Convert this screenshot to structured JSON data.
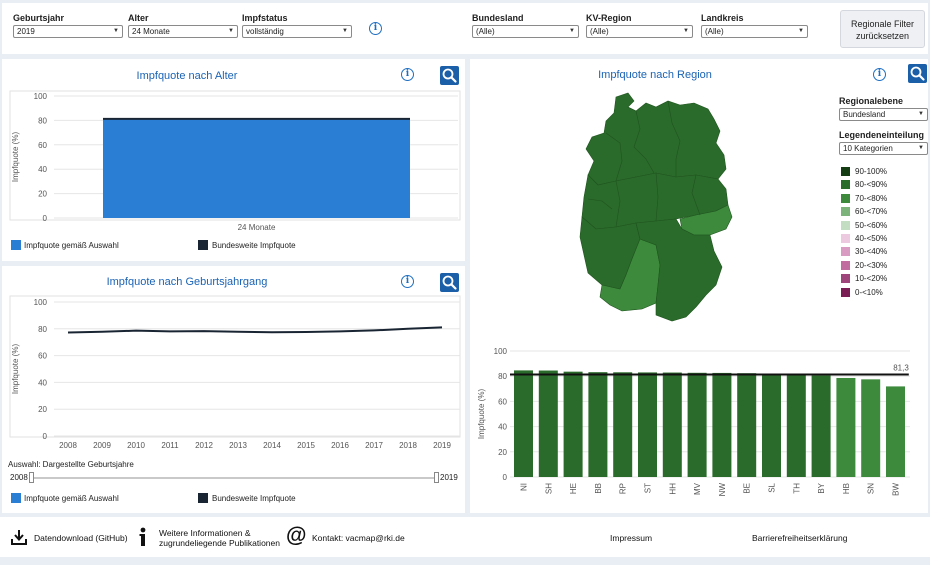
{
  "filters": {
    "geburtsjahr": {
      "label": "Geburtsjahr",
      "value": "2019"
    },
    "alter": {
      "label": "Alter",
      "value": "24 Monate"
    },
    "impfstatus": {
      "label": "Impfstatus",
      "value": "vollständig"
    },
    "bundesland": {
      "label": "Bundesland",
      "value": "(Alle)"
    },
    "kv_region": {
      "label": "KV-Region",
      "value": "(Alle)"
    },
    "landkreis": {
      "label": "Landkreis",
      "value": "(Alle)"
    },
    "reset_line1": "Regionale Filter",
    "reset_line2": "zurücksetzen"
  },
  "panel_alter": {
    "title": "Impfquote nach Alter",
    "ylabel": "Impfquote (%)",
    "legend_selected": "Impfquote gemäß Auswahl",
    "legend_national": "Bundesweite Impfquote"
  },
  "panel_jahrgang": {
    "title": "Impfquote nach Geburtsjahrgang",
    "ylabel": "Impfquote (%)",
    "slider_label": "Auswahl: Dargestellte Geburtsjahre",
    "slider_min": "2008",
    "slider_max": "2019",
    "legend_selected": "Impfquote gemäß Auswahl",
    "legend_national": "Bundesweite Impfquote"
  },
  "panel_region": {
    "title": "Impfquote nach Region",
    "regionalebene_label": "Regionalebene",
    "regionalebene_value": "Bundesland",
    "legendeneinteilung_label": "Legendeneinteilung",
    "legendeneinteilung_value": "10 Kategorien",
    "legend": [
      {
        "label": "90-100%",
        "color": "#143d14"
      },
      {
        "label": "80-<90%",
        "color": "#2a6a2a"
      },
      {
        "label": "70-<80%",
        "color": "#3d8a3d"
      },
      {
        "label": "60-<70%",
        "color": "#7bb37b"
      },
      {
        "label": "50-<60%",
        "color": "#c3ddc3"
      },
      {
        "label": "40-<50%",
        "color": "#ecc9df"
      },
      {
        "label": "30-<40%",
        "color": "#d99bc1"
      },
      {
        "label": "20-<30%",
        "color": "#c26d9f"
      },
      {
        "label": "10-<20%",
        "color": "#a0447c"
      },
      {
        "label": "0-<10%",
        "color": "#7a1d55"
      }
    ]
  },
  "chart_data": [
    {
      "type": "bar",
      "title": "Impfquote nach Alter",
      "ylabel": "Impfquote (%)",
      "categories": [
        "24 Monate"
      ],
      "values": [
        81
      ],
      "reference_value": 81.3,
      "ylim": [
        0,
        100
      ],
      "yticks": [
        0,
        20,
        40,
        60,
        80,
        100
      ],
      "colors": {
        "bar": "#2a7fd4",
        "reference": "#1a2533"
      }
    },
    {
      "type": "line",
      "title": "Impfquote nach Geburtsjahrgang",
      "ylabel": "Impfquote (%)",
      "x": [
        "2008",
        "2009",
        "2010",
        "2011",
        "2012",
        "2013",
        "2014",
        "2015",
        "2016",
        "2017",
        "2018",
        "2019"
      ],
      "series": [
        {
          "values": [
            77.2,
            77.8,
            78.6,
            78.1,
            78.3,
            77.8,
            77.4,
            77.6,
            78.1,
            78.8,
            80.0,
            81.1
          ]
        }
      ],
      "ylim": [
        0,
        100
      ],
      "yticks": [
        0,
        20,
        40,
        60,
        80,
        100
      ],
      "colors": {
        "line": "#1a2533"
      }
    },
    {
      "type": "bar",
      "ylabel": "Impfquote (%)",
      "categories": [
        "NI",
        "SH",
        "HE",
        "BB",
        "RP",
        "ST",
        "HH",
        "MV",
        "NW",
        "BE",
        "SL",
        "TH",
        "BY",
        "HB",
        "SN",
        "BW"
      ],
      "values": [
        84.6,
        84.5,
        83.6,
        83.2,
        83.1,
        83.0,
        82.9,
        82.7,
        82.6,
        82.4,
        82.1,
        81.2,
        80.5,
        78.6,
        77.5,
        71.9
      ],
      "reference_value": 81.3,
      "reference_label": "81,3",
      "ylim": [
        0,
        100
      ],
      "yticks": [
        0,
        20,
        40,
        60,
        80,
        100
      ],
      "colors": {
        "dark": "#2a6a2a",
        "light": "#3d8a3d",
        "reference": "#111111"
      }
    }
  ],
  "footer": {
    "download": "Datendownload (GitHub)",
    "info_line1": "Weitere Informationen &",
    "info_line2": "zugrundeliegende Publikationen",
    "contact": "Kontakt: vacmap@rki.de",
    "impressum": "Impressum",
    "barriere": "Barrierefreiheitserklärung"
  }
}
